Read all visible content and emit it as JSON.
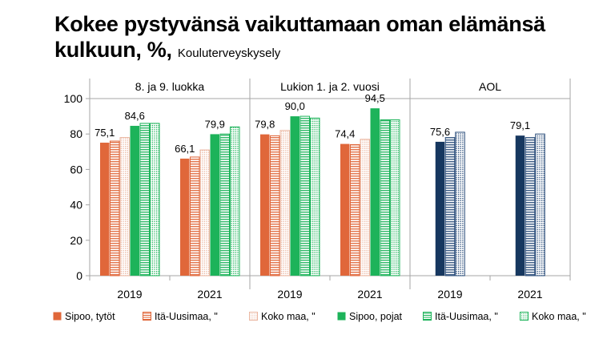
{
  "title": "Kokee pystyvänsä vaikuttamaan oman elämänsä",
  "title_line2": "kulkuun, %,",
  "subtitle": "Kouluterveyskysely",
  "colors": {
    "sipoo_tytot": "#e0673a",
    "orange_outline": "#e0673a",
    "koko_maa_tytot": "#eab59f",
    "sipoo_pojat": "#1db35a",
    "green_outline": "#1db35a",
    "aol_sipoo": "#16375f",
    "aol_outline": "#2a4d7a"
  },
  "chart_data": {
    "type": "bar",
    "title": "Kokee pystyvänsä vaikuttamaan oman elämänsä kulkuun, %, Kouluterveyskysely",
    "ylim": [
      0,
      100
    ],
    "yticks": [
      0,
      20,
      40,
      60,
      80,
      100
    ],
    "groups": [
      {
        "label": "8. ja 9. luokka",
        "categories": [
          "2019",
          "2021"
        ]
      },
      {
        "label": "Lukion 1. ja 2. vuosi",
        "categories": [
          "2019",
          "2021"
        ]
      },
      {
        "label": "AOL",
        "categories": [
          "2019",
          "2021"
        ]
      }
    ],
    "categories": [
      "2019",
      "2021",
      "2019",
      "2021",
      "2019",
      "2021"
    ],
    "series": [
      {
        "name": "Sipoo, tytöt",
        "values": [
          75.1,
          66.1,
          79.8,
          74.4,
          75.6,
          79.1
        ]
      },
      {
        "name": "Itä-Uusimaa, \"",
        "values": [
          76,
          67,
          79,
          74,
          78,
          78
        ]
      },
      {
        "name": "Koko maa, \"",
        "values": [
          78,
          71,
          82,
          77,
          81,
          80
        ]
      },
      {
        "name": "Sipoo, pojat",
        "values": [
          84.6,
          79.9,
          90.0,
          94.5,
          null,
          null
        ]
      },
      {
        "name": "Itä-Uusimaa, \"",
        "values": [
          86,
          80,
          90,
          88,
          null,
          null
        ]
      },
      {
        "name": "Koko maa, \"",
        "values": [
          86,
          84,
          89,
          88,
          null,
          null
        ]
      }
    ],
    "data_labels": [
      {
        "series": 0,
        "category": 0,
        "text": "75,1"
      },
      {
        "series": 3,
        "category": 0,
        "text": "84,6"
      },
      {
        "series": 0,
        "category": 1,
        "text": "66,1"
      },
      {
        "series": 3,
        "category": 1,
        "text": "79,9"
      },
      {
        "series": 0,
        "category": 2,
        "text": "79,8"
      },
      {
        "series": 3,
        "category": 2,
        "text": "90,0"
      },
      {
        "series": 0,
        "category": 3,
        "text": "74,4"
      },
      {
        "series": 3,
        "category": 3,
        "text": "94,5"
      },
      {
        "series": 0,
        "category": 4,
        "text": "75,6"
      },
      {
        "series": 0,
        "category": 5,
        "text": "79,1"
      }
    ],
    "grid": false,
    "legend_position": "bottom"
  }
}
